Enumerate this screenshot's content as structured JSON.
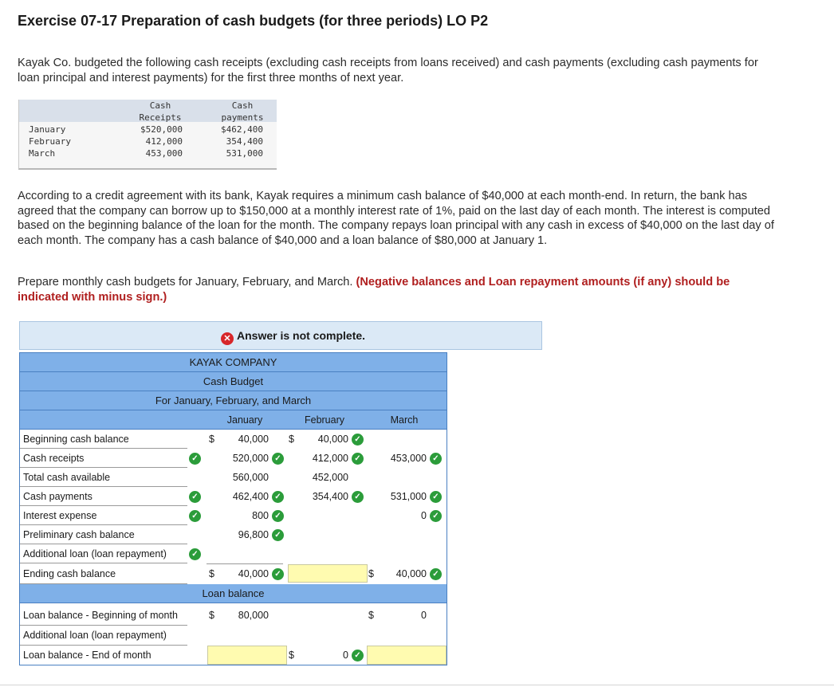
{
  "title": "Exercise 07-17 Preparation of cash budgets (for three periods) LO P2",
  "intro": "Kayak Co. budgeted the following cash receipts (excluding cash receipts from loans received) and cash payments (excluding cash payments for loan principal and interest payments) for the first three months of next year.",
  "given_table": {
    "headers": {
      "receipts": [
        "Cash",
        "Receipts"
      ],
      "payments": [
        "Cash",
        "payments"
      ]
    },
    "rows": [
      {
        "month": "January",
        "receipts": "$520,000",
        "payments": "$462,400"
      },
      {
        "month": "February",
        "receipts": "412,000",
        "payments": "354,400"
      },
      {
        "month": "March",
        "receipts": "453,000",
        "payments": "531,000"
      }
    ]
  },
  "agreement": "According to a credit agreement with its bank, Kayak requires a minimum cash balance of $40,000 at each month-end. In return, the bank has agreed that the company can borrow up to $150,000 at a monthly interest rate of 1%, paid on the last day of each month. The interest is computed based on the beginning balance of the loan for the month. The company repays loan principal with any cash in excess of $40,000 on the last day of each month. The company has a cash balance of $40,000 and a loan balance of $80,000 at January 1.",
  "instruction": "Prepare monthly cash budgets for January, February, and March.",
  "instruction_emph": "(Negative balances and Loan repayment amounts (if any) should be indicated with minus sign.)",
  "banner": "Answer is not complete.",
  "worksheet": {
    "company": "KAYAK COMPANY",
    "heading": "Cash Budget",
    "period": "For January, February, and March",
    "months": [
      "January",
      "February",
      "March"
    ],
    "dollar": "$",
    "rows": {
      "beginning": {
        "label": "Beginning cash balance",
        "jan": "40,000",
        "feb": "40,000",
        "mar": ""
      },
      "receipts": {
        "label": "Cash receipts",
        "jan": "520,000",
        "feb": "412,000",
        "mar": "453,000"
      },
      "total": {
        "label": "Total cash available",
        "jan": "560,000",
        "feb": "452,000",
        "mar": ""
      },
      "payments": {
        "label": "Cash payments",
        "jan": "462,400",
        "feb": "354,400",
        "mar": "531,000"
      },
      "interest": {
        "label": "Interest expense",
        "jan": "800",
        "feb": "",
        "mar": "0"
      },
      "preliminary": {
        "label": "Preliminary cash balance",
        "jan": "96,800",
        "feb": "",
        "mar": ""
      },
      "additional": {
        "label": "Additional loan (loan repayment)",
        "jan": "",
        "feb": "",
        "mar": ""
      },
      "ending": {
        "label": "Ending cash balance",
        "jan": "40,000",
        "feb": "",
        "mar": "40,000"
      }
    },
    "loan_heading": "Loan balance",
    "loan_rows": {
      "beginning": {
        "label": "Loan balance - Beginning of month",
        "jan": "80,000",
        "feb": "",
        "mar": "0"
      },
      "additional": {
        "label": "Additional loan (loan repayment)",
        "jan": "",
        "feb": "",
        "mar": ""
      },
      "end": {
        "label": "Loan balance - End of month",
        "jan": "",
        "feb": "0",
        "mar": ""
      }
    }
  },
  "colors": {
    "band": "#7fb0e8",
    "banner": "#dbe9f6",
    "check": "#2b9c3a",
    "error": "#d7262a",
    "emph": "#b01f1f",
    "input_empty": "#fffbb0"
  },
  "icons": {
    "incorrect": "x-circle-icon",
    "correct": "check-circle-icon"
  }
}
